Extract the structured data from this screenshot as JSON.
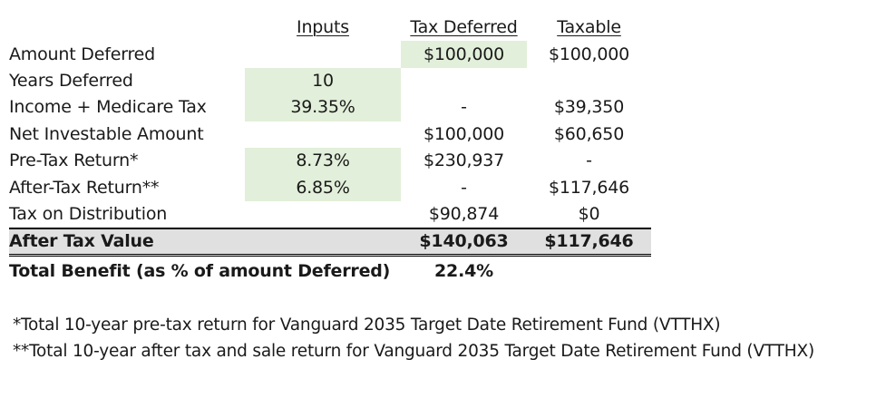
{
  "headers": {
    "inputs": "Inputs",
    "tax_deferred": "Tax Deferred",
    "taxable": "Taxable"
  },
  "rows": [
    {
      "label": "Amount Deferred",
      "input": "",
      "tax_deferred": "$100,000",
      "taxable": "$100,000"
    },
    {
      "label": "Years Deferred",
      "input": "10",
      "tax_deferred": "",
      "taxable": ""
    },
    {
      "label": "Income + Medicare Tax",
      "input": "39.35%",
      "tax_deferred": "-",
      "taxable": "$39,350"
    },
    {
      "label": "Net Investable Amount",
      "input": "",
      "tax_deferred": "$100,000",
      "taxable": "$60,650"
    },
    {
      "label": "Pre-Tax Return*",
      "input": "8.73%",
      "tax_deferred": "$230,937",
      "taxable": "-"
    },
    {
      "label": "After-Tax Return**",
      "input": "6.85%",
      "tax_deferred": "-",
      "taxable": "$117,646"
    },
    {
      "label": "Tax on Distribution",
      "input": "",
      "tax_deferred": "$90,874",
      "taxable": "$0"
    }
  ],
  "after_tax": {
    "label": "After Tax Value",
    "tax_deferred": "$140,063",
    "taxable": "$117,646"
  },
  "total_benefit": {
    "label": "Total Benefit (as % of amount Deferred)",
    "value": "22.4%"
  },
  "footnotes": [
    "*Total 10-year pre-tax return for Vanguard 2035 Target Date Retirement Fund (VTTHX)",
    "**Total 10-year after tax and sale return for Vanguard 2035 Target Date Retirement Fund (VTTHX)"
  ],
  "colors": {
    "input_shade": "#e2efda",
    "total_row_shade": "#e0e0e0"
  }
}
